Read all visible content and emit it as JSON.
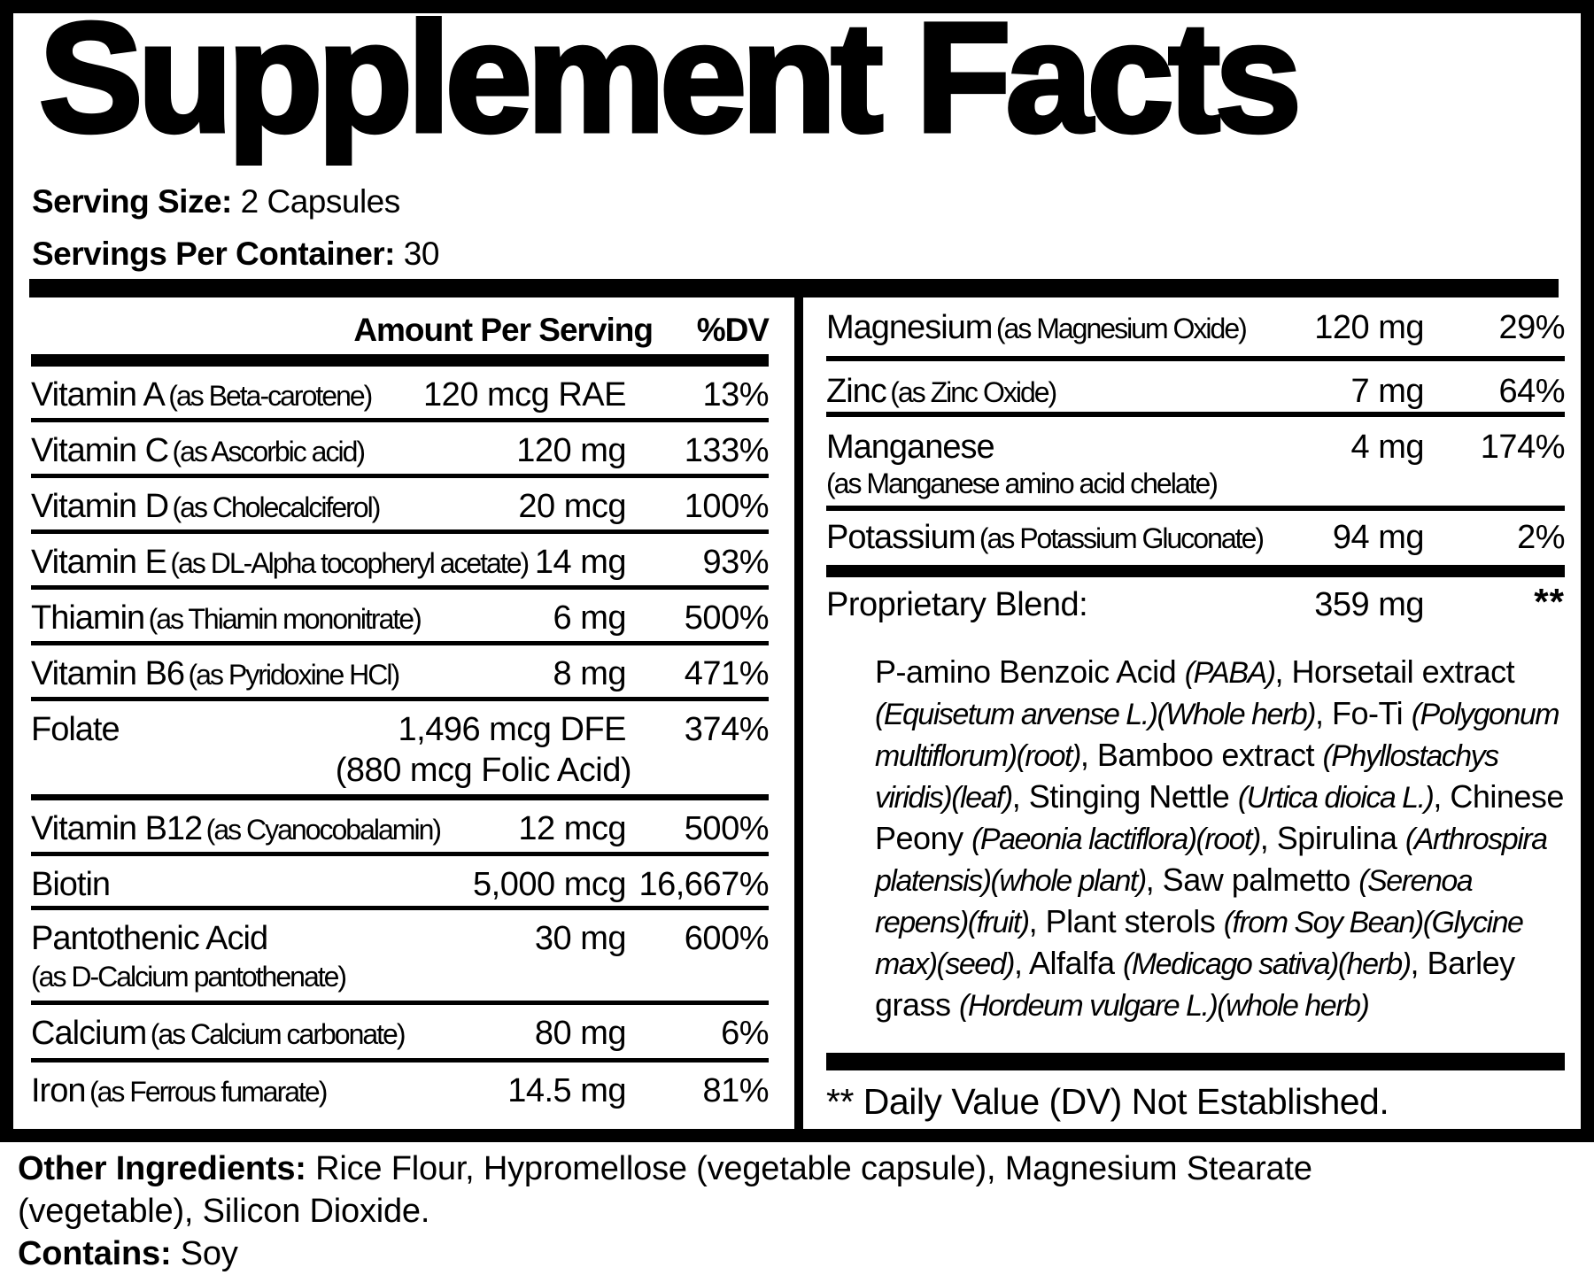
{
  "colors": {
    "ink": "#000000",
    "paper": "#ffffff"
  },
  "title": "Supplement Facts",
  "serving": {
    "size_label": "Serving Size:",
    "size_value": " 2 Capsules",
    "count_label": "Servings Per Container:",
    "count_value": " 30"
  },
  "left_table": {
    "header": {
      "amount": "Amount Per Serving",
      "dv": "%DV"
    },
    "rows": [
      {
        "name": "Vitamin A",
        "sub": "(as Beta-carotene)",
        "amount": "120 mcg RAE",
        "dv": "13%"
      },
      {
        "name": "Vitamin C",
        "sub": "(as Ascorbic acid)",
        "amount": "120 mg",
        "dv": "133%"
      },
      {
        "name": "Vitamin D",
        "sub": "(as Cholecalciferol)",
        "amount": "20 mcg",
        "dv": "100%"
      },
      {
        "name": "Vitamin E",
        "sub": "(as DL-Alpha tocopheryl acetate)",
        "amount": "14 mg",
        "dv": "93%"
      },
      {
        "name": "Thiamin",
        "sub": "(as Thiamin mononitrate)",
        "amount": "6 mg",
        "dv": "500%"
      },
      {
        "name": "Vitamin B6",
        "sub": "(as Pyridoxine HCl)",
        "amount": "8 mg",
        "dv": "471%"
      },
      {
        "name": "Folate",
        "amount": "1,496 mcg DFE",
        "amount2": "(880 mcg Folic Acid)",
        "dv": "374%"
      },
      {
        "name": "Vitamin B12",
        "sub": "(as Cyanocobalamin)",
        "amount": "12 mcg",
        "dv": "500%"
      },
      {
        "name": "Biotin",
        "amount": "5,000 mcg",
        "dv": "16,667%"
      },
      {
        "name": "Pantothenic Acid",
        "sub2": "(as D-Calcium pantothenate)",
        "amount": "30 mg",
        "dv": "600%"
      },
      {
        "name": "Calcium",
        "sub": "(as Calcium carbonate)",
        "amount": "80 mg",
        "dv": "6%"
      },
      {
        "name": "Iron",
        "sub": "(as Ferrous fumarate)",
        "amount": "14.5 mg",
        "dv": "81%"
      }
    ]
  },
  "right_table": {
    "rows": [
      {
        "name": "Magnesium",
        "sub": "(as Magnesium Oxide)",
        "amount": "120 mg",
        "dv": "29%"
      },
      {
        "name": "Zinc",
        "sub": "(as Zinc Oxide)",
        "amount": "7 mg",
        "dv": "64%"
      },
      {
        "name": "Manganese",
        "sub2": "(as Manganese amino acid chelate)",
        "amount": "4 mg",
        "dv": "174%"
      },
      {
        "name": "Potassium",
        "sub": "(as Potassium Gluconate)",
        "amount": "94 mg",
        "dv": "2%"
      }
    ],
    "blend": {
      "label": "Proprietary Blend:",
      "amount": "359 mg",
      "dv": "**",
      "segments": [
        {
          "text": "P-amino Benzoic Acid "
        },
        {
          "text": "(PABA)",
          "italic": true
        },
        {
          "text": ", Horsetail extract "
        },
        {
          "text": "(Equisetum arvense L.)(Whole herb)",
          "italic": true
        },
        {
          "text": ", Fo-Ti "
        },
        {
          "text": "(Polygonum multiflorum)(root)",
          "italic": true
        },
        {
          "text": ", Bamboo extract "
        },
        {
          "text": "(Phyllostachys viridis)(leaf)",
          "italic": true
        },
        {
          "text": ", Stinging Nettle "
        },
        {
          "text": "(Urtica dioica L.)",
          "italic": true
        },
        {
          "text": ", Chinese Peony "
        },
        {
          "text": "(Paeonia lactiflora)(root)",
          "italic": true
        },
        {
          "text": ", Spirulina "
        },
        {
          "text": "(Arthrospira platensis)(whole plant)",
          "italic": true
        },
        {
          "text": ", Saw palmetto "
        },
        {
          "text": "(Serenoa repens)(fruit)",
          "italic": true
        },
        {
          "text": ", Plant sterols "
        },
        {
          "text": "(from Soy Bean)(Glycine max)(seed)",
          "italic": true
        },
        {
          "text": ", Alfalfa "
        },
        {
          "text": "(Medicago sativa)(herb)",
          "italic": true
        },
        {
          "text": ", Barley grass "
        },
        {
          "text": "(Hordeum vulgare L.)(whole herb)",
          "italic": true
        }
      ]
    },
    "footnote": "** Daily Value (DV) Not Established."
  },
  "footer": {
    "other_label": "Other Ingredients:",
    "other_line1_rest": " Rice Flour, Hypromellose (vegetable capsule), Magnesium Stearate",
    "other_line2": "(vegetable), Silicon Dioxide.",
    "contains_label": "Contains:",
    "contains_value": " Soy"
  }
}
